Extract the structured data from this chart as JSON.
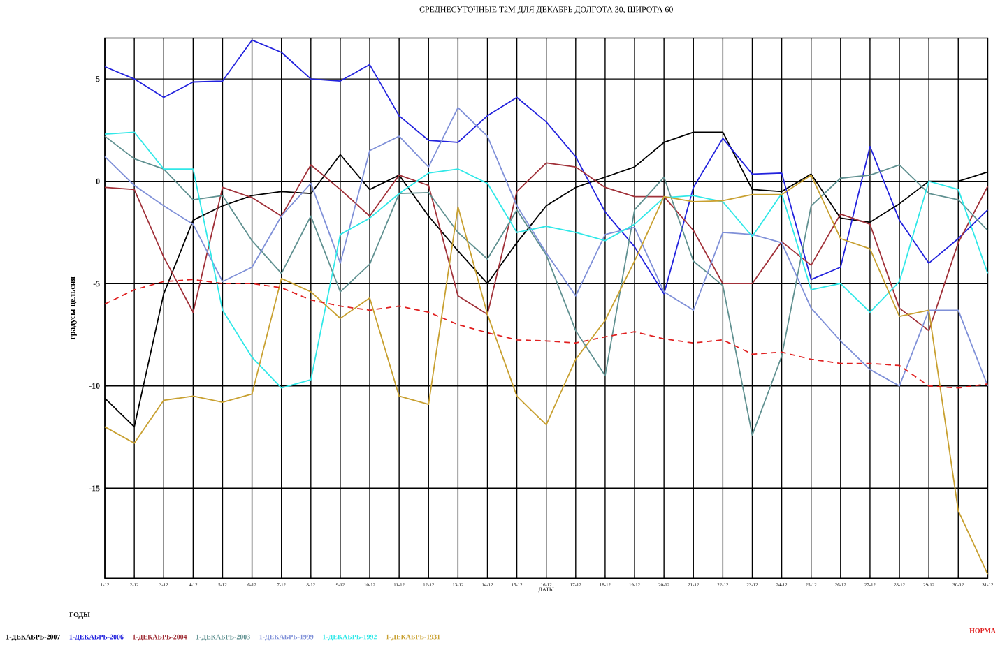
{
  "chart_data": {
    "type": "line",
    "title": "СРЕДНЕСУТОЧНЫЕ T2M ДЛЯ ДЕКАБРЬ ДОЛГОТА 30, ШИРОТА 60",
    "xlabel": "ДАТЫ",
    "ylabel": "градусы цельсия",
    "legend_title": "ГОДЫ",
    "categories": [
      "1-12",
      "2-12",
      "3-12",
      "4-12",
      "5-12",
      "6-12",
      "7-12",
      "8-12",
      "9-12",
      "10-12",
      "11-12",
      "12-12",
      "13-12",
      "14-12",
      "15-12",
      "16-12",
      "17-12",
      "18-12",
      "19-12",
      "20-12",
      "21-12",
      "22-12",
      "23-12",
      "24-12",
      "25-12",
      "26-12",
      "27-12",
      "28-12",
      "29-12",
      "30-12",
      "31-12"
    ],
    "ylim": [
      -19.4,
      7
    ],
    "yticks": [
      -15,
      -10,
      -5,
      0,
      5
    ],
    "grid": true,
    "legend": "bottom",
    "series": [
      {
        "name": "1-ДЕКАБРЬ-2007",
        "color": "#000000",
        "values": [
          -10.6,
          -12.0,
          -5.5,
          -1.9,
          -1.2,
          -0.7,
          -0.5,
          -0.6,
          1.3,
          -0.4,
          0.3,
          -1.7,
          -3.4,
          -5.0,
          -3.0,
          -1.2,
          -0.3,
          0.2,
          0.7,
          1.9,
          2.4,
          2.4,
          -0.4,
          -0.5,
          0.35,
          -1.8,
          -2.0,
          -1.1,
          0,
          0,
          0.45
        ]
      },
      {
        "name": "1-ДЕКАБРЬ-2006",
        "color": "#2222dd",
        "values": [
          5.6,
          5.0,
          4.1,
          4.85,
          4.9,
          6.9,
          6.3,
          5.0,
          4.9,
          5.7,
          3.2,
          2.0,
          1.9,
          3.2,
          4.1,
          2.9,
          1.2,
          -1.5,
          -3.2,
          -5.5,
          -0.3,
          2.1,
          0.35,
          0.4,
          -4.8,
          -4.2,
          1.7,
          -1.9,
          -4.0,
          -2.8,
          -1.4
        ]
      },
      {
        "name": "1-ДЕКАБРЬ-2004",
        "color": "#a03038",
        "values": [
          -0.3,
          -0.4,
          -3.7,
          -6.4,
          -0.3,
          -0.8,
          -1.7,
          0.8,
          -0.4,
          -1.7,
          0.3,
          -0.2,
          -5.6,
          -6.5,
          -0.5,
          0.9,
          0.7,
          -0.3,
          -0.75,
          -0.75,
          -2.4,
          -5.0,
          -5.0,
          -2.95,
          -4.1,
          -1.6,
          -2.1,
          -6.2,
          -7.3,
          -3.0,
          -0.25
        ]
      },
      {
        "name": "1-ДЕКАБРЬ-2003",
        "color": "#5f9090",
        "values": [
          2.2,
          1.1,
          0.6,
          -0.9,
          -0.7,
          -2.9,
          -4.5,
          -1.7,
          -5.4,
          -4.05,
          -0.6,
          -0.55,
          -2.5,
          -3.8,
          -1.4,
          -3.6,
          -7.3,
          -9.5,
          -1.4,
          0.2,
          -3.9,
          -5.1,
          -12.4,
          -8.55,
          -1.2,
          0.15,
          0.3,
          0.8,
          -0.6,
          -0.9,
          -2.4
        ]
      },
      {
        "name": "1-ДЕКАБРЬ-1999",
        "color": "#7f90d8",
        "values": [
          1.2,
          -0.2,
          -1.2,
          -2.1,
          -4.9,
          -4.2,
          -1.7,
          -0.1,
          -4.0,
          1.5,
          2.2,
          0.7,
          3.6,
          2.2,
          -1.2,
          -3.5,
          -5.6,
          -2.6,
          -2.25,
          -5.4,
          -6.3,
          -2.5,
          -2.6,
          -3.0,
          -6.2,
          -7.8,
          -9.2,
          -10.0,
          -6.3,
          -6.3,
          -10.0
        ]
      },
      {
        "name": "1-ДЕКАБРЬ-1992",
        "color": "#30e8e8",
        "values": [
          2.3,
          2.4,
          0.6,
          0.6,
          -6.3,
          -8.6,
          -10.1,
          -9.7,
          -2.6,
          -1.8,
          -0.6,
          0.4,
          0.6,
          -0.1,
          -2.5,
          -2.2,
          -2.5,
          -2.9,
          -2.1,
          -0.8,
          -0.7,
          -1.0,
          -2.7,
          -0.6,
          -5.3,
          -5.0,
          -6.4,
          -4.9,
          0,
          -0.4,
          -4.5
        ]
      },
      {
        "name": "1-ДЕКАБРЬ-1931",
        "color": "#c8a030",
        "values": [
          -12.0,
          -12.8,
          -10.7,
          -10.5,
          -10.8,
          -10.4,
          -4.75,
          -5.4,
          -6.7,
          -5.7,
          -10.5,
          -10.9,
          -1.25,
          -6.5,
          -10.5,
          -11.9,
          -8.7,
          -6.8,
          -3.9,
          -0.75,
          -1.0,
          -0.95,
          -0.65,
          -0.65,
          0.3,
          -2.8,
          -3.3,
          -6.6,
          -6.3,
          -16.1,
          -19.2
        ]
      },
      {
        "name": "НОРМА",
        "color": "#e02020",
        "line_style": "dashed",
        "values": [
          -6.0,
          -5.3,
          -4.9,
          -4.8,
          -5.0,
          -5.0,
          -5.2,
          -5.8,
          -6.1,
          -6.3,
          -6.1,
          -6.4,
          -7.0,
          -7.4,
          -7.75,
          -7.8,
          -7.9,
          -7.6,
          -7.35,
          -7.7,
          -7.9,
          -7.75,
          -8.45,
          -8.35,
          -8.7,
          -8.9,
          -8.9,
          -9.0,
          -10.0,
          -10.1,
          -9.9
        ]
      }
    ]
  }
}
